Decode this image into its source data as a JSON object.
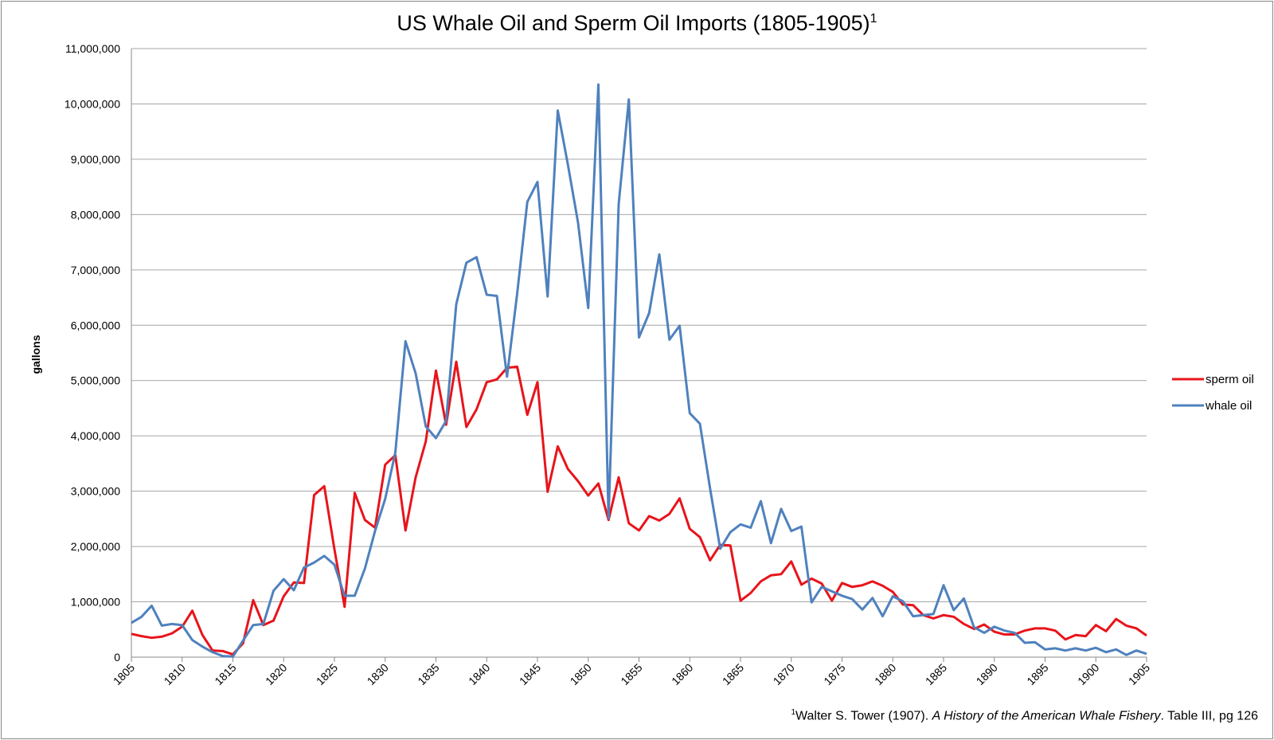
{
  "chart_data": {
    "type": "line",
    "title": "US Whale Oil and Sperm Oil Imports (1805-1905)",
    "title_note": "1",
    "y_label": "gallons",
    "source": {
      "note": "1",
      "author": "Walter S. Tower (1907). ",
      "book": "A History of the American Whale Fishery",
      "rest": ". Table III, pg 126"
    },
    "x": [
      1805,
      1806,
      1807,
      1808,
      1809,
      1810,
      1811,
      1812,
      1813,
      1814,
      1815,
      1816,
      1817,
      1818,
      1819,
      1820,
      1821,
      1822,
      1823,
      1824,
      1825,
      1826,
      1827,
      1828,
      1829,
      1830,
      1831,
      1832,
      1833,
      1834,
      1835,
      1836,
      1837,
      1838,
      1839,
      1840,
      1841,
      1842,
      1843,
      1844,
      1845,
      1846,
      1847,
      1848,
      1849,
      1850,
      1851,
      1852,
      1853,
      1854,
      1855,
      1856,
      1857,
      1858,
      1859,
      1860,
      1861,
      1862,
      1863,
      1864,
      1865,
      1866,
      1867,
      1868,
      1869,
      1870,
      1871,
      1872,
      1873,
      1874,
      1875,
      1876,
      1877,
      1878,
      1879,
      1880,
      1881,
      1882,
      1883,
      1884,
      1885,
      1886,
      1887,
      1888,
      1889,
      1890,
      1891,
      1892,
      1893,
      1894,
      1895,
      1896,
      1897,
      1898,
      1899,
      1900,
      1901,
      1902,
      1903,
      1904,
      1905
    ],
    "xlim": [
      1805,
      1905
    ],
    "xticks": [
      1805,
      1810,
      1815,
      1820,
      1825,
      1830,
      1835,
      1840,
      1845,
      1850,
      1855,
      1860,
      1865,
      1870,
      1875,
      1880,
      1885,
      1890,
      1895,
      1900,
      1905
    ],
    "ylim": [
      0,
      11000000
    ],
    "yticks": [
      {
        "value": 0,
        "label": "0"
      },
      {
        "value": 1000000,
        "label": "1,000,000"
      },
      {
        "value": 2000000,
        "label": "2,000,000"
      },
      {
        "value": 3000000,
        "label": "3,000,000"
      },
      {
        "value": 4000000,
        "label": "4,000,000"
      },
      {
        "value": 5000000,
        "label": "5,000,000"
      },
      {
        "value": 6000000,
        "label": "6,000,000"
      },
      {
        "value": 7000000,
        "label": "7,000,000"
      },
      {
        "value": 8000000,
        "label": "8,000,000"
      },
      {
        "value": 9000000,
        "label": "9,000,000"
      },
      {
        "value": 10000000,
        "label": "10,000,000"
      },
      {
        "value": 11000000,
        "label": "11,000,000"
      }
    ],
    "grid": true,
    "legend": "right",
    "series": [
      {
        "name": "sperm oil",
        "color": "#e8141b",
        "values": [
          420000,
          380000,
          350000,
          370000,
          430000,
          550000,
          840000,
          400000,
          120000,
          110000,
          50000,
          250000,
          1030000,
          580000,
          660000,
          1100000,
          1350000,
          1340000,
          2930000,
          3090000,
          1950000,
          910000,
          2970000,
          2480000,
          2340000,
          3480000,
          3650000,
          2290000,
          3250000,
          3900000,
          5180000,
          4200000,
          5340000,
          4160000,
          4480000,
          4970000,
          5020000,
          5230000,
          5250000,
          4380000,
          4970000,
          2990000,
          3810000,
          3400000,
          3180000,
          2920000,
          3140000,
          2480000,
          3250000,
          2420000,
          2290000,
          2550000,
          2470000,
          2590000,
          2870000,
          2320000,
          2170000,
          1750000,
          2030000,
          2020000,
          1020000,
          1160000,
          1370000,
          1480000,
          1500000,
          1730000,
          1310000,
          1420000,
          1330000,
          1020000,
          1340000,
          1270000,
          1300000,
          1370000,
          1290000,
          1180000,
          950000,
          940000,
          760000,
          700000,
          760000,
          730000,
          600000,
          510000,
          590000,
          460000,
          410000,
          410000,
          480000,
          520000,
          520000,
          480000,
          320000,
          400000,
          380000,
          580000,
          470000,
          690000,
          570000,
          520000,
          390000
        ]
      },
      {
        "name": "whale oil",
        "color": "#4f81bd",
        "values": [
          620000,
          730000,
          930000,
          570000,
          600000,
          580000,
          310000,
          190000,
          90000,
          20000,
          10000,
          300000,
          580000,
          600000,
          1200000,
          1410000,
          1210000,
          1620000,
          1710000,
          1830000,
          1670000,
          1110000,
          1110000,
          1600000,
          2280000,
          2860000,
          3700000,
          5710000,
          5130000,
          4170000,
          3960000,
          4270000,
          6380000,
          7130000,
          7230000,
          6550000,
          6530000,
          5070000,
          6570000,
          8230000,
          8590000,
          6520000,
          9880000,
          8900000,
          7850000,
          6310000,
          10350000,
          2510000,
          8190000,
          10080000,
          5780000,
          6220000,
          7280000,
          5740000,
          5990000,
          4410000,
          4220000,
          3050000,
          1960000,
          2260000,
          2400000,
          2340000,
          2820000,
          2060000,
          2680000,
          2280000,
          2360000,
          990000,
          1270000,
          1190000,
          1110000,
          1050000,
          860000,
          1070000,
          740000,
          1100000,
          1010000,
          740000,
          760000,
          780000,
          1300000,
          850000,
          1060000,
          540000,
          440000,
          550000,
          480000,
          440000,
          260000,
          270000,
          140000,
          160000,
          120000,
          160000,
          120000,
          170000,
          90000,
          140000,
          40000,
          120000,
          60000
        ]
      }
    ]
  }
}
